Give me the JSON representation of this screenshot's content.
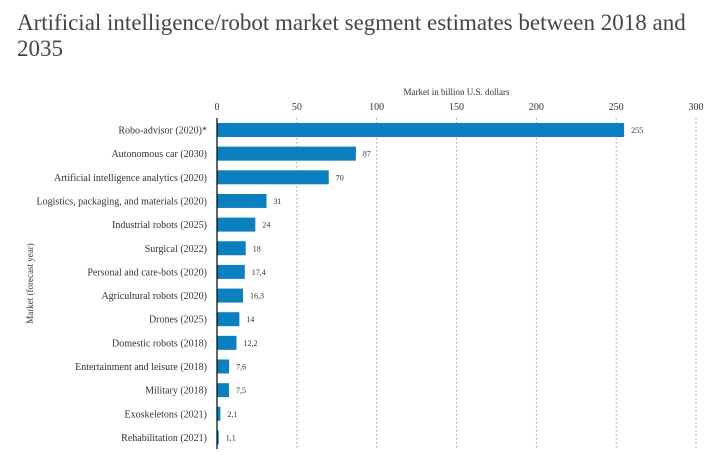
{
  "chart_data": {
    "type": "bar",
    "orientation": "horizontal",
    "title": "Artificial intelligence/robot market segment estimates between 2018 and 2035",
    "xlabel": "Market in billion U.S. dollars",
    "ylabel": "Market (forecast year)",
    "xlim": [
      0,
      300
    ],
    "xticks": [
      0,
      50,
      100,
      150,
      200,
      250,
      300
    ],
    "grid": "vertical dotted",
    "bar_color": "#0a80c1",
    "categories": [
      "Robo-advisor (2020)*",
      "Autonomous car (2030)",
      "Artificial intelligence analytics (2020)",
      "Logistics, packaging, and materials (2020)",
      "Industrial robots (2025)",
      "Surgical (2022)",
      "Personal and care-bots (2020)",
      "Agricultural robots (2020)",
      "Drones (2025)",
      "Domestic robots (2018)",
      "Entertainment and leisure (2018)",
      "Military (2018)",
      "Exoskeletons (2021)",
      "Rehabilitation (2021)"
    ],
    "values": [
      255,
      87,
      70,
      31,
      24,
      18,
      17.4,
      16.3,
      14,
      12.2,
      7.6,
      7.5,
      2.1,
      1.1
    ],
    "value_labels": [
      "255",
      "87",
      "70",
      "31",
      "24",
      "18",
      "17,4",
      "16,3",
      "14",
      "12,2",
      "7,6",
      "7,5",
      "2,1",
      "1,1"
    ]
  }
}
